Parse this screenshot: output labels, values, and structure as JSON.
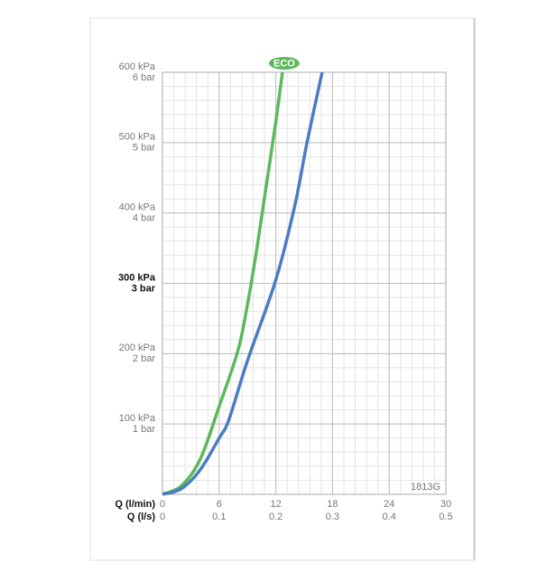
{
  "chart_data": {
    "type": "line",
    "xlabel": "Q (l/min)",
    "x2label": "Q (l/s)",
    "xlim": [
      0,
      30
    ],
    "xticks": [
      0,
      6,
      12,
      18,
      24,
      30
    ],
    "x2lim": [
      0,
      0.5
    ],
    "x2ticks": [
      0,
      0.1,
      0.2,
      0.3,
      0.4,
      0.5
    ],
    "ylim": [
      0,
      600
    ],
    "yticks": [
      {
        "value": 100,
        "label": "100 kPa"
      },
      {
        "value": 200,
        "label": "200 kPa"
      },
      {
        "value": 300,
        "label": "300 kPa"
      },
      {
        "value": 400,
        "label": "400 kPa"
      },
      {
        "value": 500,
        "label": "500 kPa"
      },
      {
        "value": 600,
        "label": "600 kPa"
      }
    ],
    "y2lim": [
      0,
      6
    ],
    "y2ticks": [
      {
        "value": 1,
        "label": "1 bar"
      },
      {
        "value": 2,
        "label": "2 bar"
      },
      {
        "value": 3,
        "label": "3 bar"
      },
      {
        "value": 4,
        "label": "4 bar"
      },
      {
        "value": 5,
        "label": "5 bar"
      },
      {
        "value": 6,
        "label": "6 bar"
      }
    ],
    "grid": true,
    "annotation": "1813G",
    "series": [
      {
        "name": "ECO",
        "color": "#5cb85a",
        "x": [
          0,
          2,
          4,
          6,
          8,
          9,
          10,
          11,
          12,
          12.7
        ],
        "values": [
          0,
          12,
          50,
          125,
          205,
          270,
          350,
          440,
          530,
          600
        ]
      },
      {
        "color": "#4a7cc6",
        "x": [
          0,
          2,
          4,
          6,
          7,
          9,
          12,
          14,
          15.3,
          16.9
        ],
        "values": [
          0,
          8,
          35,
          80,
          105,
          190,
          305,
          410,
          500,
          600
        ]
      }
    ]
  }
}
